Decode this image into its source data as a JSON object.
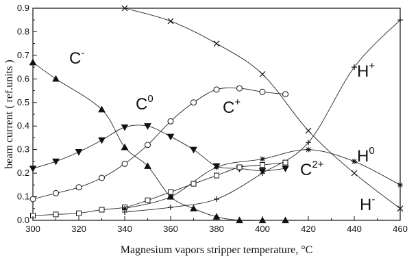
{
  "chart_data": {
    "type": "line",
    "xlabel": "Magnesium vapors stripper temperature, °C",
    "ylabel": "beam current ( ref.units )",
    "xlim": [
      300,
      460
    ],
    "ylim": [
      0,
      0.9
    ],
    "x_ticks": [
      "300",
      "320",
      "340",
      "360",
      "380",
      "400",
      "420",
      "440",
      "460"
    ],
    "y_ticks": [
      "0.0",
      "0.1",
      "0.2",
      "0.3",
      "0.4",
      "0.5",
      "0.6",
      "0.7",
      "0.8",
      "0.9"
    ],
    "grid": false,
    "series": [
      {
        "name": "C-",
        "label": {
          "base": "C",
          "sup": "-"
        },
        "marker": "triangle-up",
        "points": [
          [
            300,
            0.67
          ],
          [
            310,
            0.6
          ],
          [
            330,
            0.47
          ],
          [
            340,
            0.31
          ],
          [
            350,
            0.23
          ],
          [
            360,
            0.1
          ],
          [
            370,
            0.05
          ],
          [
            380,
            0.015
          ],
          [
            390,
            0.0
          ],
          [
            400,
            0.0
          ],
          [
            410,
            0.0
          ]
        ]
      },
      {
        "name": "C0",
        "label": {
          "base": "C",
          "sup": "0"
        },
        "marker": "triangle-down",
        "points": [
          [
            300,
            0.22
          ],
          [
            310,
            0.25
          ],
          [
            320,
            0.29
          ],
          [
            330,
            0.34
          ],
          [
            340,
            0.395
          ],
          [
            350,
            0.4
          ],
          [
            360,
            0.355
          ],
          [
            370,
            0.3
          ],
          [
            380,
            0.23
          ],
          [
            390,
            0.22
          ],
          [
            400,
            0.21
          ],
          [
            410,
            0.22
          ]
        ]
      },
      {
        "name": "C+",
        "label": {
          "base": "C",
          "sup": "+"
        },
        "marker": "circle",
        "points": [
          [
            300,
            0.09
          ],
          [
            310,
            0.115
          ],
          [
            320,
            0.14
          ],
          [
            330,
            0.18
          ],
          [
            340,
            0.24
          ],
          [
            350,
            0.32
          ],
          [
            360,
            0.42
          ],
          [
            370,
            0.5
          ],
          [
            380,
            0.555
          ],
          [
            390,
            0.56
          ],
          [
            400,
            0.545
          ],
          [
            410,
            0.535
          ]
        ]
      },
      {
        "name": "C2+",
        "label": {
          "base": "C",
          "sup": "2+"
        },
        "marker": "square",
        "points": [
          [
            300,
            0.02
          ],
          [
            310,
            0.025
          ],
          [
            320,
            0.03
          ],
          [
            330,
            0.045
          ],
          [
            340,
            0.055
          ],
          [
            350,
            0.085
          ],
          [
            360,
            0.12
          ],
          [
            370,
            0.155
          ],
          [
            380,
            0.19
          ],
          [
            390,
            0.225
          ],
          [
            400,
            0.235
          ],
          [
            410,
            0.245
          ]
        ]
      },
      {
        "name": "H+",
        "label": {
          "base": "H",
          "sup": "+"
        },
        "marker": "x",
        "points": [
          [
            340,
            0.9
          ],
          [
            360,
            0.845
          ],
          [
            380,
            0.75
          ],
          [
            400,
            0.62
          ],
          [
            420,
            0.38
          ],
          [
            440,
            0.2
          ],
          [
            460,
            0.05
          ]
        ]
      },
      {
        "name": "H0",
        "label": {
          "base": "H",
          "sup": "0"
        },
        "marker": "asterisk",
        "points": [
          [
            340,
            0.05
          ],
          [
            360,
            0.1
          ],
          [
            380,
            0.225
          ],
          [
            400,
            0.26
          ],
          [
            420,
            0.3
          ],
          [
            440,
            0.25
          ],
          [
            460,
            0.15
          ]
        ]
      },
      {
        "name": "H-",
        "label": {
          "base": "H",
          "sup": "-"
        },
        "marker": "plus",
        "points": [
          [
            340,
            0.035
          ],
          [
            360,
            0.055
          ],
          [
            380,
            0.09
          ],
          [
            400,
            0.2
          ],
          [
            420,
            0.33
          ],
          [
            440,
            0.65
          ],
          [
            460,
            0.85
          ]
        ]
      }
    ]
  }
}
